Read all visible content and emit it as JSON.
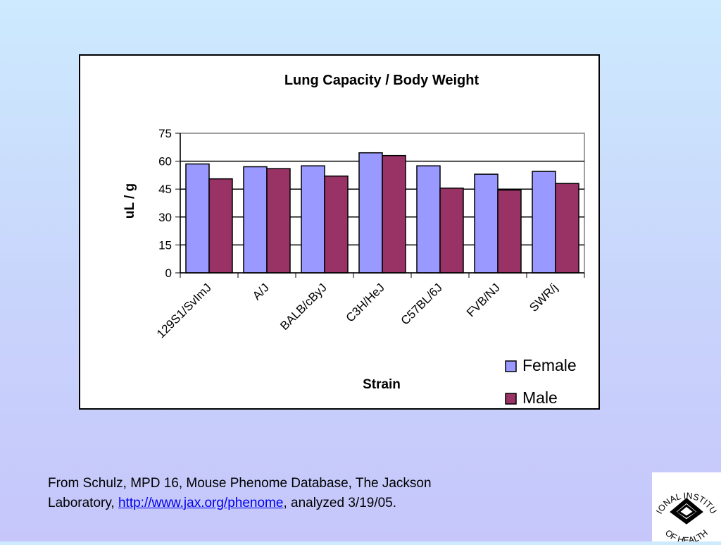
{
  "chart_data": {
    "type": "bar",
    "title": "Lung Capacity / Body Weight",
    "xlabel": "Strain",
    "ylabel": "uL / g",
    "categories": [
      "129S1/SvImJ",
      "A/J",
      "BALB/cByJ",
      "C3H/HeJ",
      "C57BL/6J",
      "FVB/NJ",
      "SWR/j"
    ],
    "series": [
      {
        "name": "Female",
        "color": "#9999ff",
        "values": [
          58.5,
          57,
          57.5,
          64.5,
          57.5,
          53,
          54.5
        ]
      },
      {
        "name": "Male",
        "color": "#993366",
        "values": [
          50.5,
          56,
          52,
          63,
          45.5,
          44.5,
          48
        ]
      }
    ],
    "ylim": [
      0,
      75
    ],
    "yticks": [
      0,
      15,
      30,
      45,
      60,
      75
    ],
    "ytick_labels": [
      "0",
      "15",
      "30",
      "45",
      "60",
      "75"
    ],
    "grid": true,
    "legend": "bottom-right"
  },
  "citation": {
    "line1": "From Schulz, MPD 16, Mouse Phenome Database, The Jackson",
    "prefix": "Laboratory, ",
    "link_text": "http://www.jax.org/phenome",
    "suffix": ", analyzed 3/19/05."
  },
  "logo": {
    "arc_top": "NATIONAL INSTITUTES",
    "arc_bottom": "OF HEALTH",
    "icon": "nih-logo-icon"
  }
}
